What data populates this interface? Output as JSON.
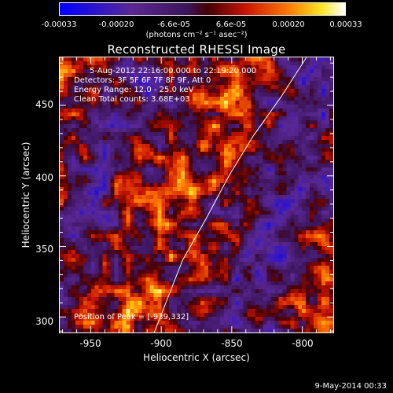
{
  "colorbar": {
    "tick_labels": [
      "-0.00033",
      "-0.00020",
      "-6.6e-05",
      "6.6e-05",
      "0.00020",
      "0.00033"
    ],
    "units": "(photons cm⁻² s⁻¹ asec⁻²)"
  },
  "title": "Reconstructed RHESSI Image",
  "info": {
    "time_range": "5-Aug-2012 22:16:00.000 to 22:19:20.000",
    "detectors": "Detectors: 3F 5F 6F 7F 8F 9F, Att 0",
    "energy_range": "Energy Range: 12.0 - 25.0 keV",
    "clean_counts": "Clean     Total counts: 3.68E+03",
    "peak_position": "Position of Peak = [-939,332]"
  },
  "axes": {
    "xlabel": "Heliocentric X (arcsec)",
    "ylabel": "Heliocentric Y (arcsec)",
    "xticks": [
      "-950",
      "-900",
      "-850",
      "-800"
    ],
    "yticks": [
      "450",
      "400",
      "350",
      "300"
    ]
  },
  "footer": {
    "date": "9-May-2014 00:33"
  },
  "colors": {
    "background": "#000000",
    "axis": "#ffffff",
    "limb": "#ffffff"
  },
  "chart_data": {
    "type": "heatmap",
    "title": "Reconstructed RHESSI Image",
    "xlabel": "Heliocentric X (arcsec)",
    "ylabel": "Heliocentric Y (arcsec)",
    "xlim": [
      -972,
      -778
    ],
    "ylim": [
      289,
      484
    ],
    "colorbar_range": [
      -0.00033,
      0.00033
    ],
    "peak": [
      -939,
      332
    ],
    "limb_curve": {
      "x": [
        -905,
        -885,
        -868,
        -852,
        -835,
        -815,
        -797
      ],
      "y": [
        289,
        340,
        370,
        400,
        428,
        456,
        484
      ]
    }
  }
}
